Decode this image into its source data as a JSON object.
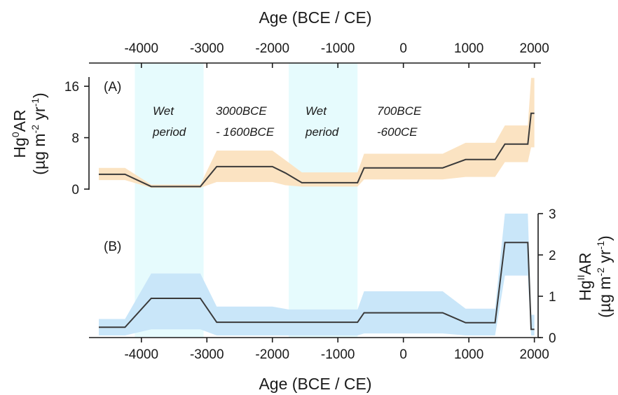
{
  "chart_data": {
    "type": "line",
    "x_axis": {
      "label": "Age (BCE / CE)",
      "range": [
        -4800,
        2100
      ],
      "ticks": [
        -4000,
        -3000,
        -2000,
        -1000,
        0,
        1000,
        2000
      ],
      "tick_labels": [
        "-4000",
        "-3000",
        "-2000",
        "-1000",
        "0",
        "1000",
        "2000"
      ]
    },
    "wet_periods": [
      {
        "start": -4100,
        "end": -3050,
        "label_line1": "Wet",
        "label_line2": "period"
      },
      {
        "start": -1750,
        "end": -700,
        "label_line1": "Wet",
        "label_line2": "period"
      }
    ],
    "annotations": [
      {
        "line1": "3000BCE",
        "line2": "- 1600BCE"
      },
      {
        "line1": "700BCE",
        "line2": "-600CE"
      }
    ],
    "panels": [
      {
        "id": "A",
        "label": "(A)",
        "ylabel_main": "Hg",
        "ylabel_sup": "0",
        "ylabel_rest": "AR",
        "yunit_pre": "(µg m",
        "yunit_sup1": "-2",
        "yunit_mid": " yr",
        "yunit_sup2": "-1",
        "yunit_post": ")",
        "ylim": [
          0,
          17
        ],
        "yticks": [
          0,
          8,
          16
        ],
        "ytick_labels": [
          "0",
          "8",
          "16"
        ],
        "color_band": "#fbe3c2",
        "color_line": "#3a3a3a",
        "x": [
          -4650,
          -4250,
          -3850,
          -3100,
          -2850,
          -2000,
          -1800,
          -1550,
          -700,
          -600,
          600,
          950,
          1400,
          1550,
          1900,
          1950,
          2000
        ],
        "y": [
          2.3,
          2.3,
          0.4,
          0.4,
          3.5,
          3.5,
          2.5,
          1.0,
          1.0,
          3.3,
          3.3,
          4.6,
          4.6,
          7.0,
          7.0,
          11.8,
          11.8
        ],
        "lower": [
          1.4,
          1.4,
          0.2,
          0.2,
          1.1,
          1.1,
          0.6,
          0.4,
          0.4,
          1.5,
          1.5,
          1.9,
          1.9,
          4.2,
          4.2,
          6.5,
          6.5
        ],
        "upper": [
          3.3,
          3.3,
          0.7,
          0.7,
          6.0,
          6.0,
          4.5,
          2.6,
          2.6,
          5.5,
          5.5,
          7.2,
          7.2,
          9.9,
          9.9,
          17.3,
          17.3
        ]
      },
      {
        "id": "B",
        "label": "(B)",
        "ylabel_main": "Hg",
        "ylabel_sup": "II",
        "ylabel_rest": "AR",
        "yunit_pre": "(µg m",
        "yunit_sup1": "-2",
        "yunit_mid": " yr",
        "yunit_sup2": "-1",
        "yunit_post": ")",
        "ylim": [
          0,
          3
        ],
        "yticks": [
          0,
          1,
          2,
          3
        ],
        "ytick_labels": [
          "0",
          "1",
          "2",
          "3"
        ],
        "color_band": "#c9e6f9",
        "color_line": "#3a3a3a",
        "x": [
          -4650,
          -4250,
          -3850,
          -3100,
          -2850,
          -2000,
          -1750,
          -800,
          -700,
          -600,
          600,
          950,
          1400,
          1550,
          1750,
          1900,
          1950,
          2000
        ],
        "y": [
          0.25,
          0.25,
          0.95,
          0.95,
          0.37,
          0.37,
          0.37,
          0.37,
          0.37,
          0.6,
          0.6,
          0.36,
          0.36,
          2.3,
          2.3,
          2.3,
          0.2,
          0.2
        ],
        "lower": [
          0.05,
          0.05,
          0.2,
          0.2,
          0.05,
          0.05,
          0.05,
          0.05,
          0.05,
          0.1,
          0.1,
          0.05,
          0.05,
          1.5,
          1.5,
          1.5,
          0.05,
          0.05
        ],
        "upper": [
          0.45,
          0.45,
          1.55,
          1.55,
          0.75,
          0.75,
          0.68,
          0.68,
          0.68,
          1.12,
          1.12,
          0.7,
          0.7,
          3.0,
          3.0,
          3.0,
          0.55,
          0.55
        ]
      }
    ]
  },
  "colors": {
    "wet_band": "#e6fbfd",
    "axis": "#1a1a1a"
  }
}
